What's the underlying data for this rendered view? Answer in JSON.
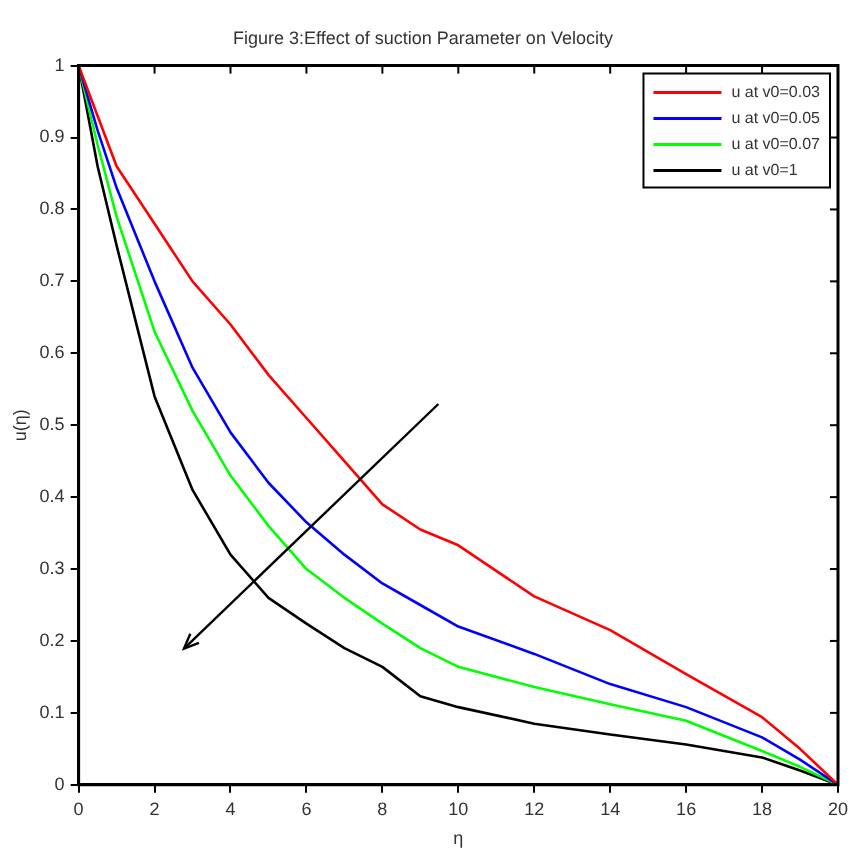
{
  "chart_data": {
    "type": "line",
    "title": "Figure 3:Effect of suction Parameter on Velocity",
    "xlabel": "η",
    "ylabel": "u(η)",
    "x": [
      0,
      0.5,
      1,
      2,
      3,
      4,
      5,
      6,
      7,
      8,
      9,
      10,
      12,
      14,
      16,
      18,
      19,
      20
    ],
    "series": [
      {
        "name": "u at v0=0.03",
        "color": "#ff0000",
        "values": [
          1,
          0.93,
          0.86,
          0.78,
          0.7,
          0.64,
          0.57,
          0.51,
          0.45,
          0.39,
          0.355,
          0.333,
          0.262,
          0.215,
          0.154,
          0.094,
          0.05,
          0
        ]
      },
      {
        "name": "u at v0=0.05",
        "color": "#0000ff",
        "values": [
          1,
          0.91,
          0.83,
          0.7,
          0.58,
          0.49,
          0.42,
          0.365,
          0.32,
          0.28,
          0.25,
          0.22,
          0.182,
          0.14,
          0.108,
          0.066,
          0.035,
          0
        ]
      },
      {
        "name": "u at v0=0.07",
        "color": "#00ff00",
        "values": [
          1,
          0.89,
          0.79,
          0.63,
          0.52,
          0.43,
          0.36,
          0.3,
          0.26,
          0.224,
          0.19,
          0.164,
          0.136,
          0.112,
          0.089,
          0.047,
          0.025,
          0
        ]
      },
      {
        "name": "u at v0=1",
        "color": "#000000",
        "values": [
          1,
          0.86,
          0.75,
          0.54,
          0.41,
          0.32,
          0.26,
          0.224,
          0.19,
          0.164,
          0.123,
          0.108,
          0.085,
          0.07,
          0.056,
          0.038,
          0.02,
          0
        ]
      }
    ],
    "xlim": [
      0,
      20
    ],
    "xticks": [
      0,
      2,
      4,
      6,
      8,
      10,
      12,
      14,
      16,
      18,
      20
    ],
    "ylim": [
      0,
      1
    ],
    "yticks": [
      0,
      0.1,
      0.2,
      0.3,
      0.4,
      0.5,
      0.6,
      0.7,
      0.8,
      0.9,
      1
    ],
    "grid": false,
    "legend": "top right",
    "marker": "none",
    "line_style": "solid"
  }
}
